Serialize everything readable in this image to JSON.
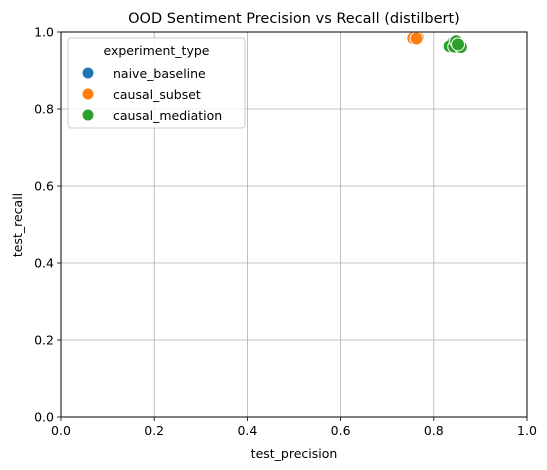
{
  "chart_data": {
    "type": "scatter",
    "title": "OOD Sentiment Precision vs Recall (distilbert)",
    "xlabel": "test_precision",
    "ylabel": "test_recall",
    "xlim": [
      0.0,
      1.0
    ],
    "ylim": [
      0.0,
      1.0
    ],
    "xticks": [
      "0.0",
      "0.2",
      "0.4",
      "0.6",
      "0.8",
      "1.0"
    ],
    "yticks": [
      "0.0",
      "0.2",
      "0.4",
      "0.6",
      "0.8",
      "1.0"
    ],
    "grid": true,
    "legend": {
      "title": "experiment_type",
      "position": "top-left"
    },
    "series": [
      {
        "name": "naive_baseline",
        "color": "#1f77b4",
        "points": [
          [
            0.838,
            0.969
          ],
          [
            0.845,
            0.967
          ],
          [
            0.85,
            0.97
          ],
          [
            0.84,
            0.964
          ]
        ]
      },
      {
        "name": "causal_subset",
        "color": "#ff7f0e",
        "points": [
          [
            0.756,
            0.984
          ],
          [
            0.766,
            0.985
          ],
          [
            0.763,
            0.983
          ]
        ]
      },
      {
        "name": "causal_mediation",
        "color": "#2ca02c",
        "points": [
          [
            0.834,
            0.963
          ],
          [
            0.844,
            0.962
          ],
          [
            0.858,
            0.961
          ],
          [
            0.848,
            0.976
          ],
          [
            0.852,
            0.968
          ]
        ]
      }
    ]
  }
}
